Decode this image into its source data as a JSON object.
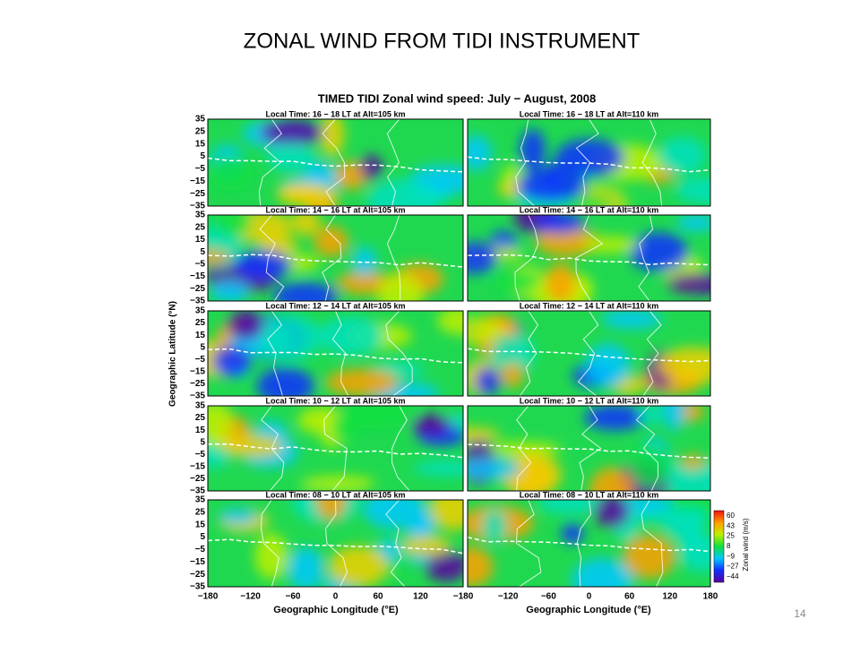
{
  "header": {
    "title": "ZONAL WIND FROM TIDI INSTRUMENT"
  },
  "figure": {
    "title": "TIMED TIDI Zonal wind speed: July − August, 2008",
    "panels": [
      "Local Time: 16 − 18 LT at Alt=105 km",
      "Local Time: 16 − 18 LT at Alt=110 km",
      "Local Time: 14 − 16 LT at Alt=105 km",
      "Local Time: 14 − 16 LT at Alt=110 km",
      "Local Time: 12 − 14 LT at Alt=105 km",
      "Local Time: 12 − 14 LT at Alt=110 km",
      "Local Time: 10 − 12 LT at Alt=105 km",
      "Local Time: 10 − 12 LT at Alt=110 km",
      "Local Time: 08 − 10 LT at Alt=105 km",
      "Local Time: 08 − 10 LT at Alt=110 km"
    ],
    "y_axis": {
      "label": "Geographic Latitude (°N)",
      "ticks": [
        "35",
        "25",
        "15",
        "5",
        "−5",
        "−15",
        "−25",
        "−35"
      ]
    },
    "x_axis_left": {
      "label": "Geographic Longitude (°E)",
      "ticks": [
        "−180",
        "−120",
        "−60",
        "0",
        "60",
        "120"
      ]
    },
    "x_axis_right": {
      "label": "Geographic Longitude (°E)",
      "ticks": [
        "−180",
        "−120",
        "−60",
        "0",
        "60",
        "120",
        "180"
      ]
    },
    "colorbar": {
      "label": "Zonal wind (m/s)",
      "ticks": [
        "60",
        "43",
        "25",
        "8",
        "−9",
        "−27",
        "−44"
      ]
    }
  },
  "footer": {
    "page": "14"
  }
}
